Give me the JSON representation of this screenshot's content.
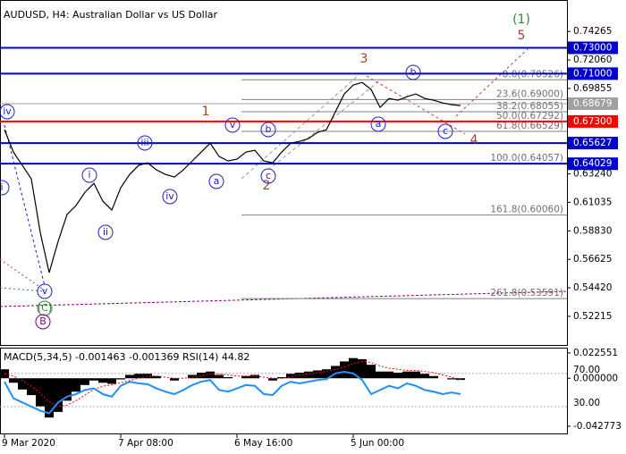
{
  "chart_data": [
    {
      "type": "line",
      "title": "AUDUSD, H4:  Australian Dollar vs US Dollar",
      "values": [
        0.6666,
        0.6493,
        0.639,
        0.6286,
        0.5871,
        0.556,
        0.5802,
        0.601,
        0.6079,
        0.6182,
        0.6251,
        0.6113,
        0.6044,
        0.6217,
        0.632,
        0.639,
        0.641,
        0.6355,
        0.632,
        0.63,
        0.6355,
        0.6424,
        0.6493,
        0.6562,
        0.6459,
        0.6424,
        0.6438,
        0.6493,
        0.6507,
        0.6424,
        0.641,
        0.6493,
        0.6562,
        0.6576,
        0.6597,
        0.6645,
        0.6666,
        0.6804,
        0.6943,
        0.7012,
        0.7032,
        0.6977,
        0.6839,
        0.6908,
        0.6894,
        0.6922,
        0.6943,
        0.6908,
        0.6894,
        0.6873,
        0.686,
        0.6853
      ],
      "color": "#000000",
      "ylim": [
        0.5,
        0.767
      ],
      "yticks": [
        0.74265,
        {
          "value": 0.7206,
          "label": "0.72060"
        },
        0.69855,
        {
          "value": 0.6324,
          "label": "0.63240"
        },
        0.61035,
        {
          "value": 0.5883,
          "label": "0.58830"
        },
        0.56625,
        {
          "value": 0.5442,
          "label": "0.54420"
        },
        0.52215
      ],
      "xticks": [
        {
          "value": 0,
          "label": "9 Mar 2020"
        },
        {
          "value": 13,
          "label": "7 Apr 08:00"
        },
        {
          "value": 26,
          "label": "6 May 16:00"
        },
        {
          "value": 39,
          "label": "5 Jun 00:00"
        }
      ],
      "levels": [
        {
          "value": 0.73,
          "label": "0.73000",
          "color": "#0000cd"
        },
        {
          "value": 0.71,
          "label": "0.71000",
          "color": "#0000cd"
        },
        {
          "value": 0.68679,
          "label": "0.68679",
          "color": "#a0a0a0"
        },
        {
          "value": 0.673,
          "label": "0.67300",
          "color": "#ff0000"
        },
        {
          "value": 0.65627,
          "label": "0.65627",
          "color": "#0000cd"
        },
        {
          "value": 0.64029,
          "label": "0.64029",
          "color": "#0000cd"
        }
      ],
      "fibonacci": [
        {
          "value": 0.70526,
          "label": "0.0(0.70526)"
        },
        {
          "value": 0.69,
          "label": "23.6(0.69000)"
        },
        {
          "value": 0.68055,
          "label": "38.2(0.68055)"
        },
        {
          "value": 0.67292,
          "label": "50.0(0.67292)"
        },
        {
          "value": 0.66529,
          "label": "61.8(0.66529)"
        },
        {
          "value": 0.64057,
          "label": "100.0(0.64057)"
        },
        {
          "value": 0.6006,
          "label": "161.8(0.60060)"
        },
        {
          "value": 0.53591,
          "label": "261.8(0.53591)"
        }
      ],
      "wave_labels": [
        {
          "text": "(1)",
          "color": "#2e8b2e"
        },
        {
          "text": "5",
          "color": "#a0402a"
        },
        {
          "text": "3",
          "color": "#a0402a"
        },
        {
          "text": "1",
          "color": "#a0402a"
        },
        {
          "text": "2",
          "color": "#a0402a"
        },
        {
          "text": "4",
          "color": "#a0402a"
        }
      ],
      "circled_labels": [
        {
          "text": "iv",
          "color": "#2020c0"
        },
        {
          "text": "v",
          "color": "#2020c0"
        },
        {
          "text": "b",
          "color": "#2020c0"
        },
        {
          "text": "iii",
          "color": "#2020c0"
        },
        {
          "text": "i",
          "color": "#2020c0"
        },
        {
          "text": "ii",
          "color": "#2020c0"
        },
        {
          "text": "iv",
          "color": "#2020c0"
        },
        {
          "text": "a",
          "color": "#2020c0"
        },
        {
          "text": "c",
          "color": "#2020c0"
        },
        {
          "text": "b",
          "color": "#2020c0"
        },
        {
          "text": "a",
          "color": "#2020c0"
        },
        {
          "text": "c",
          "color": "#2020c0"
        },
        {
          "text": "i",
          "color": "#2020c0"
        },
        {
          "text": "v",
          "color": "#2020c0"
        },
        {
          "text": "(C)",
          "color": "#2e8b2e"
        },
        {
          "text": "B",
          "color": "#800080"
        }
      ]
    },
    {
      "type": "macd",
      "title": "MACD(5,34,5) -0.001463 -0.001369 RSI(14) 44.82",
      "values": [
        0.008,
        -0.004,
        -0.01,
        -0.015,
        -0.025,
        -0.035,
        -0.03,
        -0.02,
        -0.012,
        -0.006,
        -0.002,
        -0.004,
        -0.005,
        -0.001,
        0.003,
        0.004,
        0.004,
        0.002,
        0.0,
        -0.002,
        0.0,
        0.003,
        0.005,
        0.006,
        0.003,
        0.001,
        0.0,
        0.002,
        0.003,
        0.0,
        -0.002,
        0.001,
        0.004,
        0.005,
        0.006,
        0.007,
        0.008,
        0.011,
        0.015,
        0.018,
        0.017,
        0.012,
        0.006,
        0.006,
        0.005,
        0.006,
        0.006,
        0.004,
        0.002,
        0.0,
        -0.001,
        -0.0015
      ],
      "color": "#000000",
      "signal_values": [
        0.004,
        0.002,
        -0.002,
        -0.007,
        -0.013,
        -0.021,
        -0.025,
        -0.024,
        -0.02,
        -0.015,
        -0.01,
        -0.007,
        -0.006,
        -0.004,
        -0.002,
        0.0,
        0.002,
        0.002,
        0.001,
        0.0,
        0.0,
        0.001,
        0.002,
        0.004,
        0.004,
        0.003,
        0.002,
        0.002,
        0.002,
        0.001,
        0.0,
        0.0,
        0.001,
        0.003,
        0.004,
        0.005,
        0.006,
        0.008,
        0.01,
        0.013,
        0.015,
        0.014,
        0.011,
        0.009,
        0.008,
        0.007,
        0.007,
        0.006,
        0.005,
        0.003,
        0.001,
        -0.001
      ],
      "signal_color": "#ff0000",
      "rsi_values": [
        60,
        40,
        35,
        30,
        25,
        22,
        35,
        42,
        45,
        50,
        52,
        45,
        42,
        55,
        60,
        58,
        57,
        52,
        48,
        45,
        50,
        56,
        60,
        62,
        50,
        48,
        52,
        56,
        55,
        45,
        44,
        55,
        60,
        58,
        60,
        62,
        63,
        70,
        72,
        70,
        62,
        45,
        50,
        55,
        52,
        58,
        55,
        50,
        48,
        45,
        47,
        45
      ],
      "rsi_color": "#1e90ff",
      "ylim": [
        -0.0492,
        0.0265
      ],
      "yticks": [
        0.022551,
        {
          "value": 0,
          "label": "0.000000"
        },
        -0.042773
      ],
      "y2lim": [
        -2.4,
        100
      ],
      "y2ticks": [
        {
          "value": 70,
          "label": "70.00"
        },
        {
          "value": 30,
          "label": "30.00"
        }
      ]
    }
  ]
}
